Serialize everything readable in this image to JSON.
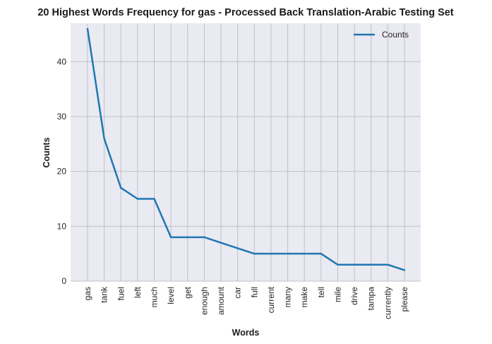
{
  "chart_data": {
    "type": "line",
    "title": "20 Highest Words Frequency for gas - Processed Back Translation-Arabic Testing Set",
    "xlabel": "Words",
    "ylabel": "Counts",
    "categories": [
      "gas",
      "tank",
      "fuel",
      "left",
      "much",
      "level",
      "get",
      "enough",
      "amount",
      "car",
      "full",
      "current",
      "many",
      "make",
      "tell",
      "mile",
      "drive",
      "tampa",
      "currently",
      "please"
    ],
    "series": [
      {
        "name": "Counts",
        "values": [
          46,
          26,
          17,
          15,
          15,
          8,
          8,
          8,
          7,
          6,
          5,
          5,
          5,
          5,
          5,
          3,
          3,
          3,
          3,
          2
        ],
        "color": "#1f77b4"
      }
    ],
    "ylim": [
      0,
      47
    ],
    "yticks": [
      0,
      10,
      20,
      30,
      40
    ],
    "grid": true,
    "legend": "top-right",
    "background": "#eaeaf2",
    "grid_color": "#c0c0c8"
  }
}
